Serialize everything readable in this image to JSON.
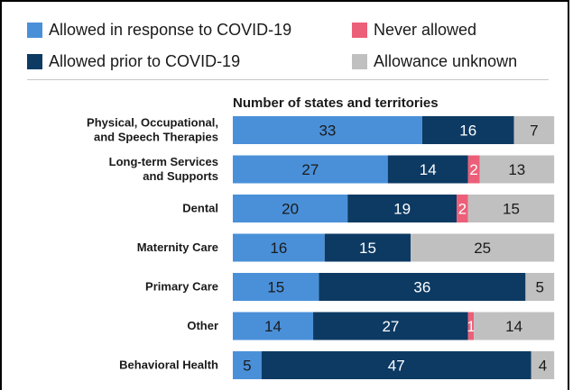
{
  "chart_data": {
    "type": "bar",
    "orientation": "horizontal",
    "stacked": true,
    "title": "Number of states and territories",
    "categories": [
      "Physical, Occupational,\nand Speech Therapies",
      "Long-term Services\nand Supports",
      "Dental",
      "Maternity Care",
      "Primary Care",
      "Other",
      "Behavioral Health"
    ],
    "series": [
      {
        "name": "Allowed in response to COVID-19",
        "color": "#4a90d9",
        "values": [
          33,
          27,
          20,
          16,
          15,
          14,
          5
        ]
      },
      {
        "name": "Allowed prior to COVID-19",
        "color": "#0d3a63",
        "values": [
          16,
          14,
          19,
          15,
          36,
          27,
          47
        ]
      },
      {
        "name": "Never allowed",
        "color": "#ec5f79",
        "values": [
          0,
          2,
          2,
          0,
          0,
          1,
          0
        ]
      },
      {
        "name": "Allowance unknown",
        "color": "#c0c0c0",
        "values": [
          7,
          13,
          15,
          25,
          5,
          14,
          4
        ]
      }
    ],
    "xlim": [
      0,
      56
    ],
    "grid": false,
    "legend_position": "top"
  }
}
